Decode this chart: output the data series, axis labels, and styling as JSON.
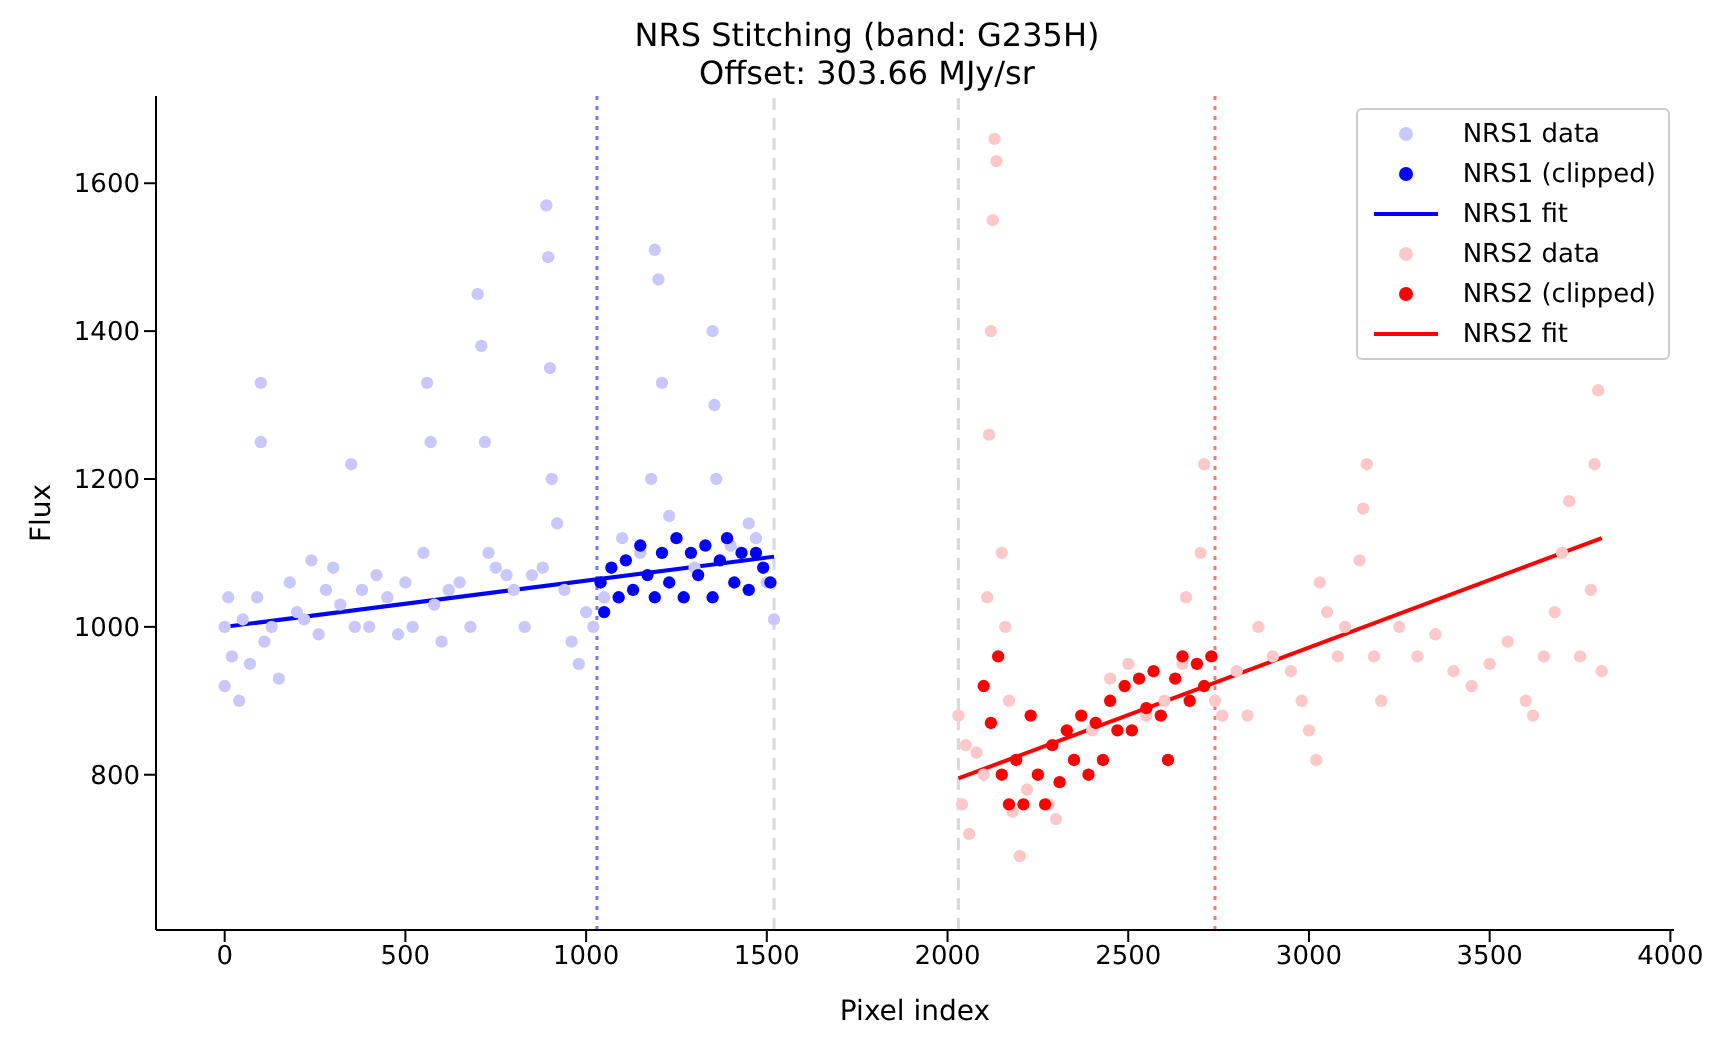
{
  "chart_data": {
    "type": "scatter",
    "title": "NRS Stitching (band: G235H)",
    "subtitle": "Offset: 303.66 MJy/sr",
    "xlabel": "Pixel index",
    "ylabel": "Flux",
    "xlim": [
      -190,
      4010
    ],
    "ylim": [
      590,
      1718
    ],
    "xticks": [
      0,
      500,
      1000,
      1500,
      2000,
      2500,
      3000,
      3500,
      4000
    ],
    "yticks": [
      800,
      1000,
      1200,
      1400,
      1600
    ],
    "grid": false,
    "legend": "top right",
    "series": [
      {
        "name": "NRS1 data",
        "marker": "circle",
        "color": "#c8c8ff",
        "x": [
          0,
          0,
          10,
          20,
          40,
          50,
          70,
          90,
          100,
          100,
          110,
          130,
          150,
          180,
          200,
          220,
          240,
          260,
          280,
          300,
          320,
          350,
          360,
          380,
          400,
          420,
          450,
          480,
          500,
          520,
          550,
          560,
          570,
          580,
          600,
          620,
          650,
          680,
          700,
          710,
          720,
          730,
          750,
          780,
          800,
          830,
          850,
          880,
          890,
          895,
          900,
          905,
          920,
          940,
          960,
          980,
          1000,
          1020,
          1050,
          1100,
          1150,
          1180,
          1190,
          1200,
          1210,
          1230,
          1300,
          1350,
          1355,
          1360,
          1400,
          1450,
          1470,
          1500,
          1520
        ],
        "values": [
          1000,
          920,
          1040,
          960,
          900,
          1010,
          950,
          1040,
          1330,
          1250,
          980,
          1000,
          930,
          1060,
          1020,
          1010,
          1090,
          990,
          1050,
          1080,
          1030,
          1220,
          1000,
          1050,
          1000,
          1070,
          1040,
          990,
          1060,
          1000,
          1100,
          1330,
          1250,
          1030,
          980,
          1050,
          1060,
          1000,
          1450,
          1380,
          1250,
          1100,
          1080,
          1070,
          1050,
          1000,
          1070,
          1080,
          1570,
          1500,
          1350,
          1200,
          1140,
          1050,
          980,
          950,
          1020,
          1000,
          1040,
          1120,
          1100,
          1200,
          1510,
          1470,
          1330,
          1150,
          1080,
          1400,
          1300,
          1200,
          1110,
          1140,
          1120,
          1060,
          1010
        ]
      },
      {
        "name": "NRS1 (clipped)",
        "marker": "circle",
        "color": "#0000ff",
        "x": [
          1040,
          1050,
          1070,
          1090,
          1110,
          1130,
          1150,
          1170,
          1190,
          1210,
          1230,
          1250,
          1270,
          1290,
          1310,
          1330,
          1350,
          1370,
          1390,
          1410,
          1430,
          1450,
          1470,
          1490,
          1510
        ],
        "values": [
          1060,
          1020,
          1080,
          1040,
          1090,
          1050,
          1110,
          1070,
          1040,
          1100,
          1060,
          1120,
          1040,
          1100,
          1070,
          1110,
          1040,
          1090,
          1120,
          1060,
          1100,
          1050,
          1100,
          1080,
          1060
        ]
      },
      {
        "name": "NRS1 fit",
        "type": "line",
        "marker": "none",
        "color": "#0000ff",
        "x": [
          0,
          1520
        ],
        "values": [
          1000,
          1095
        ]
      },
      {
        "name": "NRS2 data",
        "marker": "circle",
        "color": "#ffc8c8",
        "x": [
          2030,
          2040,
          2050,
          2060,
          2080,
          2100,
          2110,
          2115,
          2120,
          2125,
          2130,
          2135,
          2150,
          2160,
          2170,
          2180,
          2200,
          2220,
          2250,
          2280,
          2300,
          2350,
          2400,
          2450,
          2500,
          2550,
          2600,
          2650,
          2660,
          2700,
          2710,
          2740,
          2760,
          2800,
          2830,
          2860,
          2900,
          2950,
          2980,
          3000,
          3020,
          3030,
          3050,
          3080,
          3100,
          3140,
          3150,
          3160,
          3180,
          3200,
          3250,
          3300,
          3350,
          3400,
          3450,
          3500,
          3550,
          3600,
          3620,
          3650,
          3680,
          3700,
          3720,
          3750,
          3780,
          3790,
          3800,
          3810
        ],
        "values": [
          880,
          760,
          840,
          720,
          830,
          800,
          1040,
          1260,
          1400,
          1550,
          1660,
          1630,
          1100,
          1000,
          900,
          750,
          690,
          780,
          800,
          760,
          740,
          820,
          860,
          930,
          950,
          880,
          900,
          950,
          1040,
          1100,
          1220,
          900,
          880,
          940,
          880,
          1000,
          960,
          940,
          900,
          860,
          820,
          1060,
          1020,
          960,
          1000,
          1090,
          1160,
          1220,
          960,
          900,
          1000,
          960,
          990,
          940,
          920,
          950,
          980,
          900,
          880,
          960,
          1020,
          1100,
          1170,
          960,
          1050,
          1220,
          1320,
          940
        ]
      },
      {
        "name": "NRS2 (clipped)",
        "marker": "circle",
        "color": "#ff0000",
        "x": [
          2100,
          2120,
          2140,
          2150,
          2170,
          2190,
          2210,
          2230,
          2250,
          2270,
          2290,
          2310,
          2330,
          2350,
          2370,
          2390,
          2410,
          2430,
          2450,
          2470,
          2490,
          2510,
          2530,
          2550,
          2570,
          2590,
          2610,
          2630,
          2650,
          2670,
          2690,
          2710,
          2730
        ],
        "values": [
          920,
          870,
          960,
          800,
          760,
          820,
          760,
          880,
          800,
          760,
          840,
          790,
          860,
          820,
          880,
          800,
          870,
          820,
          900,
          860,
          920,
          860,
          930,
          890,
          940,
          880,
          820,
          930,
          960,
          900,
          950,
          920,
          960
        ]
      },
      {
        "name": "NRS2 fit",
        "type": "line",
        "marker": "none",
        "color": "#ff0000",
        "x": [
          2030,
          3810
        ],
        "values": [
          795,
          1120
        ]
      }
    ],
    "ref_lines": [
      {
        "axis": "x",
        "value": 1030,
        "color": "#7777ff",
        "line_style": "dotted"
      },
      {
        "axis": "x",
        "value": 1520,
        "color": "#d9d9d9",
        "line_style": "dashed"
      },
      {
        "axis": "x",
        "value": 2030,
        "color": "#d9d9d9",
        "line_style": "dashed"
      },
      {
        "axis": "x",
        "value": 2740,
        "color": "#ff7777",
        "line_style": "dotted"
      }
    ]
  }
}
